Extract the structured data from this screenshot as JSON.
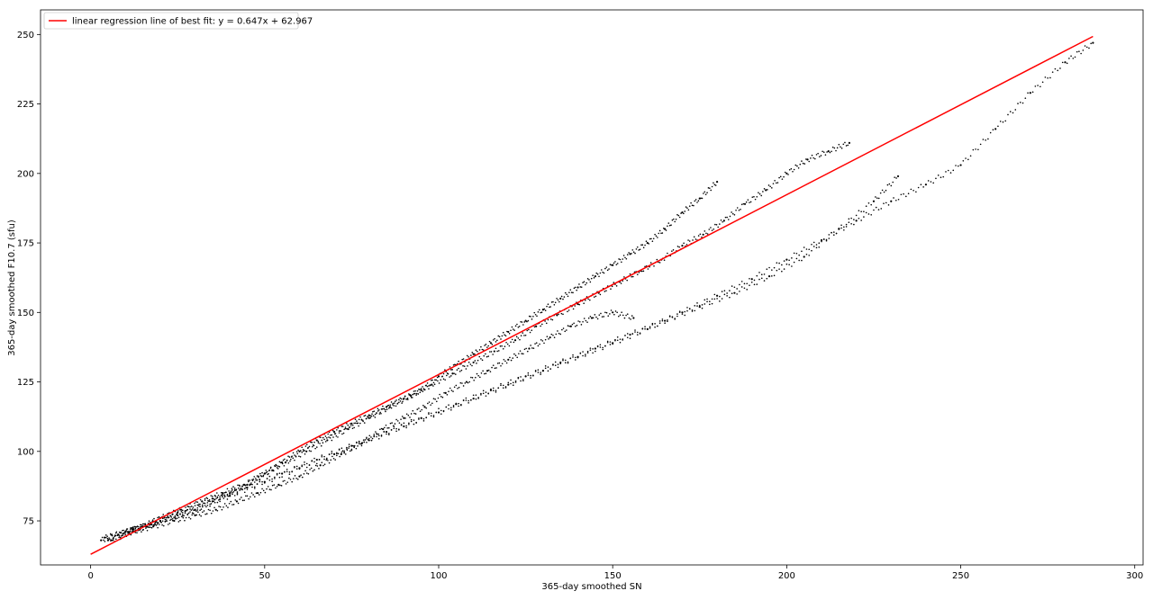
{
  "chart_data": {
    "type": "scatter",
    "title": "",
    "xlabel": "365-day smoothed SN",
    "ylabel": "365-day smoothed F10.7 (sfu)",
    "xlim": [
      -14.4,
      302.4
    ],
    "ylim": [
      59.15,
      258.85
    ],
    "xticks": [
      0,
      50,
      100,
      150,
      200,
      250,
      300
    ],
    "yticks": [
      75,
      100,
      125,
      150,
      175,
      200,
      225,
      250
    ],
    "grid": false,
    "legend_position": "upper-left",
    "colors": {
      "data": "#000000",
      "fit": "#ff0000"
    },
    "series": [
      {
        "marker": "small-dot",
        "x": [
          3,
          8,
          12,
          16,
          20,
          25,
          30,
          35,
          40,
          45,
          50,
          55,
          60,
          65,
          70,
          75,
          80,
          85,
          90,
          95,
          100,
          105,
          110,
          115,
          120,
          125,
          130,
          135,
          140,
          145,
          150,
          155,
          160,
          165,
          170,
          175,
          180,
          4,
          10,
          15,
          20,
          26,
          32,
          38,
          44,
          50,
          56,
          62,
          68,
          74,
          80,
          86,
          92,
          98,
          104,
          110,
          116,
          122,
          128,
          134,
          140,
          146,
          152,
          158,
          164,
          170,
          176,
          182,
          188,
          194,
          200,
          206,
          212,
          218,
          6,
          12,
          18,
          24,
          30,
          36,
          42,
          48,
          54,
          60,
          66,
          72,
          78,
          84,
          90,
          96,
          102,
          108,
          114,
          120,
          126,
          132,
          138,
          144,
          150,
          156,
          10,
          20,
          30,
          40,
          50,
          60,
          70,
          80,
          90,
          100,
          110,
          120,
          130,
          140,
          150,
          160,
          170,
          180,
          190,
          200,
          210,
          220,
          230,
          240,
          250,
          260,
          270,
          280,
          288,
          5,
          15,
          25,
          35,
          45,
          55,
          65,
          75,
          85,
          95,
          105,
          115,
          125,
          135,
          145,
          155,
          165,
          175,
          185,
          195,
          205,
          215,
          225,
          232
        ],
        "y": [
          68,
          70,
          72,
          73,
          75,
          77,
          79,
          82,
          85,
          88,
          92,
          96,
          100,
          104,
          107,
          110,
          113,
          116,
          119,
          122,
          127,
          131,
          135,
          139,
          143,
          147,
          151,
          155,
          159,
          163,
          167,
          171,
          175,
          180,
          186,
          191,
          197,
          69,
          71,
          73,
          76,
          79,
          82,
          85,
          88,
          92,
          96,
          100,
          104,
          108,
          112,
          116,
          120,
          124,
          128,
          132,
          136,
          140,
          145,
          149,
          153,
          157,
          161,
          165,
          169,
          174,
          178,
          183,
          189,
          194,
          200,
          205,
          208,
          211,
          68,
          71,
          73,
          75,
          77,
          79,
          82,
          85,
          88,
          91,
          95,
          99,
          103,
          108,
          112,
          116,
          121,
          125,
          129,
          133,
          137,
          141,
          145,
          148,
          150,
          148,
          71,
          75,
          79,
          84,
          89,
          94,
          99,
          104,
          109,
          114,
          119,
          124,
          129,
          134,
          139,
          144,
          150,
          156,
          162,
          169,
          176,
          183,
          190,
          196,
          203,
          216,
          229,
          240,
          247,
          68,
          73,
          78,
          83,
          87,
          92,
          97,
          102,
          107,
          112,
          117,
          122,
          127,
          132,
          137,
          142,
          147,
          152,
          157,
          163,
          170,
          180,
          190,
          199
        ]
      }
    ],
    "fit_line": {
      "label": "linear regression line of best fit: y = 0.647x + 62.967",
      "slope": 0.647,
      "intercept": 62.967,
      "x_range": [
        0,
        288
      ]
    }
  }
}
